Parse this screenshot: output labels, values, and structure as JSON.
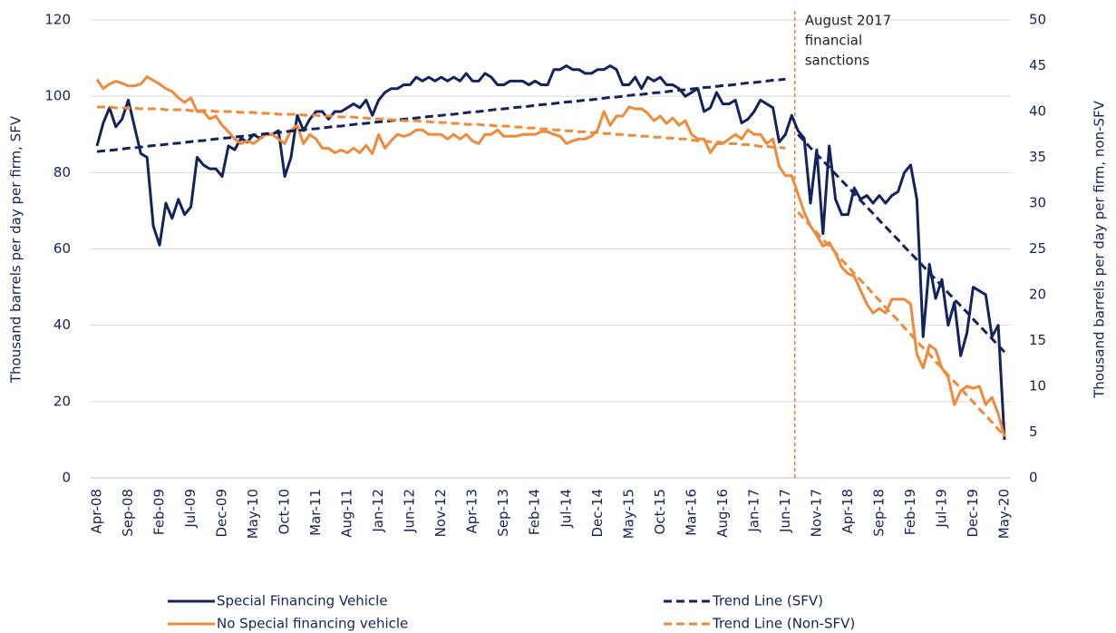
{
  "chart_data": {
    "type": "line",
    "y_label": "Thousand barrels per day per firm, SFV",
    "y2_label": "Thousand barrels per day per firm, non-SFV",
    "annotation": {
      "text": [
        "August 2017",
        "financial",
        "sanctions"
      ],
      "x_index": 111.5,
      "color": "#e8822e"
    },
    "grid": true,
    "legend": "bottom",
    "ylim": [
      0,
      120
    ],
    "yticks": [
      0,
      20,
      40,
      60,
      80,
      100,
      120
    ],
    "y2lim": [
      0,
      50
    ],
    "y2ticks": [
      0,
      5,
      10,
      15,
      20,
      25,
      30,
      35,
      40,
      45,
      50
    ],
    "categories": [
      "Apr-08",
      null,
      null,
      null,
      null,
      "Sep-08",
      null,
      null,
      null,
      null,
      "Feb-09",
      null,
      null,
      null,
      null,
      "Jul-09",
      null,
      null,
      null,
      null,
      "Dec-09",
      null,
      null,
      null,
      null,
      "May-10",
      null,
      null,
      null,
      null,
      "Oct-10",
      null,
      null,
      null,
      null,
      "Mar-11",
      null,
      null,
      null,
      null,
      "Aug-11",
      null,
      null,
      null,
      null,
      "Jan-12",
      null,
      null,
      null,
      null,
      "Jun-12",
      null,
      null,
      null,
      null,
      "Nov-12",
      null,
      null,
      null,
      null,
      "Apr-13",
      null,
      null,
      null,
      null,
      "Sep-13",
      null,
      null,
      null,
      null,
      "Feb-14",
      null,
      null,
      null,
      null,
      "Jul-14",
      null,
      null,
      null,
      null,
      "Dec-14",
      null,
      null,
      null,
      null,
      "May-15",
      null,
      null,
      null,
      null,
      "Oct-15",
      null,
      null,
      null,
      null,
      "Mar-16",
      null,
      null,
      null,
      null,
      "Aug-16",
      null,
      null,
      null,
      null,
      "Jan-17",
      null,
      null,
      null,
      null,
      "Jun-17",
      null,
      null,
      null,
      null,
      "Nov-17",
      null,
      null,
      null,
      null,
      "Apr-18",
      null,
      null,
      null,
      null,
      "Sep-18",
      null,
      null,
      null,
      null,
      "Feb-19",
      null,
      null,
      null,
      null,
      "Jul-19",
      null,
      null,
      null,
      null,
      "Dec-19",
      null,
      null,
      null,
      null,
      "May-20"
    ],
    "series": [
      {
        "name": "Special Financing Vehicle",
        "color": "#13235e",
        "dash": false,
        "axis": "y",
        "values": [
          87,
          93,
          97,
          92,
          94,
          99,
          92,
          85,
          84,
          66,
          61,
          72,
          68,
          73,
          69,
          71,
          84,
          82,
          81,
          81,
          79,
          87,
          86,
          89,
          88,
          90,
          89,
          90,
          90,
          91,
          79,
          84,
          95,
          91,
          94,
          96,
          96,
          94,
          96,
          96,
          97,
          98,
          97,
          99,
          95,
          99,
          101,
          102,
          102,
          103,
          103,
          105,
          104,
          105,
          104,
          105,
          104,
          105,
          104,
          106,
          104,
          104,
          106,
          105,
          103,
          103,
          104,
          104,
          104,
          103,
          104,
          103,
          103,
          107,
          107,
          108,
          107,
          107,
          106,
          106,
          107,
          107,
          108,
          107,
          103,
          103,
          105,
          102,
          105,
          104,
          105,
          103,
          103,
          102,
          100,
          101,
          102,
          96,
          97,
          101,
          98,
          98,
          99,
          93,
          94,
          96,
          99,
          98,
          97,
          88,
          90,
          95,
          91,
          89,
          72,
          86,
          64,
          87,
          73,
          69,
          69,
          76,
          73,
          74,
          72,
          74,
          72,
          74,
          75,
          80,
          82,
          73,
          37,
          56,
          47,
          52,
          40,
          46,
          32,
          38,
          50,
          49,
          48,
          37,
          40,
          10
        ]
      },
      {
        "name": "No Special financing vehicle",
        "color": "#ee8a3a",
        "dash": false,
        "axis": "y2",
        "values": [
          43.5,
          42.5,
          43,
          43.3,
          43.1,
          42.8,
          42.8,
          43,
          43.8,
          43.4,
          43,
          42.5,
          42.2,
          41.5,
          41,
          41.5,
          40,
          40,
          39.2,
          39.5,
          38.5,
          37.8,
          37,
          36.5,
          36.8,
          36.5,
          37,
          37.5,
          37.5,
          37,
          36.5,
          38,
          38.5,
          36.5,
          37.5,
          37,
          36,
          36,
          35.5,
          35.8,
          35.5,
          36,
          35.5,
          36.3,
          35.4,
          37.5,
          36,
          36.8,
          37.5,
          37.3,
          37.5,
          38,
          38,
          37.5,
          37.5,
          37.5,
          37,
          37.5,
          37,
          37.5,
          36.8,
          36.5,
          37.5,
          37.5,
          38,
          37.3,
          37.3,
          37.3,
          37.5,
          37.5,
          37.5,
          37.8,
          37.8,
          37.5,
          37.3,
          36.5,
          36.8,
          37,
          37,
          37.3,
          38,
          40,
          38.5,
          39.5,
          39.5,
          40.5,
          40.3,
          40.3,
          39.8,
          39,
          39.5,
          38.7,
          39.3,
          38.5,
          39,
          37.5,
          37,
          37,
          35.5,
          36.5,
          36.5,
          37,
          37.5,
          37,
          38,
          37.5,
          37.5,
          36.5,
          37,
          34,
          33,
          33,
          31,
          29,
          27.5,
          26.5,
          25.3,
          25.7,
          24.5,
          23,
          22.3,
          22,
          20.5,
          19,
          18,
          18.5,
          18,
          19.5,
          19.5,
          19.5,
          19,
          13.5,
          12,
          14.5,
          14,
          12,
          11,
          8,
          9.5,
          10,
          9.8,
          10,
          8,
          8.8,
          7,
          4.5
        ]
      },
      {
        "name": "Trend Line (SFV)",
        "color": "#13235e",
        "dash": true,
        "axis": "y",
        "values": [
          85.5,
          85.7,
          85.8,
          86.0,
          86.2,
          86.4,
          86.5,
          86.7,
          86.9,
          87.1,
          87.2,
          87.4,
          87.6,
          87.7,
          87.9,
          88.1,
          88.3,
          88.4,
          88.6,
          88.8,
          89.0,
          89.1,
          89.3,
          89.5,
          89.6,
          89.8,
          90.0,
          90.2,
          90.3,
          90.5,
          90.7,
          90.9,
          91.0,
          91.2,
          91.4,
          91.5,
          91.7,
          91.9,
          92.1,
          92.2,
          92.4,
          92.6,
          92.8,
          92.9,
          93.1,
          93.3,
          93.4,
          93.6,
          93.8,
          94.0,
          94.1,
          94.3,
          94.5,
          94.7,
          94.8,
          95.0,
          95.2,
          95.3,
          95.5,
          95.7,
          95.9,
          96.0,
          96.2,
          96.4,
          96.6,
          96.7,
          96.9,
          97.1,
          97.2,
          97.4,
          97.6,
          97.8,
          97.9,
          98.1,
          98.3,
          98.5,
          98.6,
          98.8,
          99.0,
          99.1,
          99.3,
          99.5,
          99.7,
          99.8,
          100.0,
          100.2,
          100.4,
          100.5,
          100.7,
          100.9,
          101.0,
          101.2,
          101.4,
          101.6,
          101.7,
          101.9,
          102.1,
          102.3,
          102.4,
          102.6,
          102.8,
          102.9,
          103.1,
          103.3,
          103.5,
          103.6,
          103.8,
          104.0,
          104.2,
          104.3,
          104.5,
          null,
          90.0,
          88.3,
          86.5,
          84.8,
          83.1,
          81.4,
          79.6,
          77.9,
          76.2,
          74.5,
          72.7,
          71.0,
          69.3,
          67.5,
          65.8,
          64.1,
          62.4,
          60.6,
          58.9,
          57.2,
          55.5,
          53.7,
          52.0,
          50.3,
          48.5,
          46.8,
          45.1,
          43.4,
          41.6,
          39.9,
          38.2,
          36.5,
          34.7,
          33.0
        ]
      },
      {
        "name": "Trend Line (Non-SFV)",
        "color": "#ee8a3a",
        "dash": true,
        "axis": "y2",
        "values": [
          40.5,
          40.5,
          40.5,
          40.4,
          40.4,
          40.4,
          40.4,
          40.3,
          40.3,
          40.3,
          40.3,
          40.2,
          40.2,
          40.2,
          40.2,
          40.1,
          40.1,
          40.1,
          40.1,
          40.0,
          40.0,
          40.0,
          40.0,
          39.9,
          39.9,
          39.9,
          39.8,
          39.8,
          39.8,
          39.7,
          39.7,
          39.7,
          39.7,
          39.6,
          39.6,
          39.6,
          39.5,
          39.5,
          39.5,
          39.4,
          39.4,
          39.4,
          39.3,
          39.3,
          39.2,
          39.2,
          39.2,
          39.1,
          39.1,
          39.0,
          39.0,
          39.0,
          38.9,
          38.9,
          38.8,
          38.8,
          38.8,
          38.7,
          38.7,
          38.6,
          38.6,
          38.6,
          38.5,
          38.5,
          38.4,
          38.4,
          38.4,
          38.3,
          38.3,
          38.2,
          38.2,
          38.1,
          38.1,
          38.0,
          38.0,
          37.9,
          37.9,
          37.8,
          37.8,
          37.7,
          37.7,
          37.6,
          37.6,
          37.5,
          37.5,
          37.4,
          37.4,
          37.3,
          37.3,
          37.2,
          37.2,
          37.1,
          37.1,
          37.0,
          37.0,
          36.9,
          36.8,
          36.8,
          36.7,
          36.7,
          36.6,
          36.5,
          36.5,
          36.4,
          36.4,
          36.3,
          36.2,
          36.2,
          36.1,
          36.1,
          36.0,
          null,
          29.0,
          28.3,
          27.5,
          26.8,
          26.0,
          25.3,
          24.6,
          23.8,
          23.1,
          22.3,
          21.6,
          20.9,
          20.1,
          19.4,
          18.6,
          17.9,
          17.2,
          16.4,
          15.7,
          14.9,
          14.2,
          13.5,
          12.7,
          12.0,
          11.2,
          10.5,
          9.8,
          9.0,
          8.3,
          7.5,
          6.8,
          6.1,
          5.3,
          4.6
        ]
      }
    ]
  }
}
